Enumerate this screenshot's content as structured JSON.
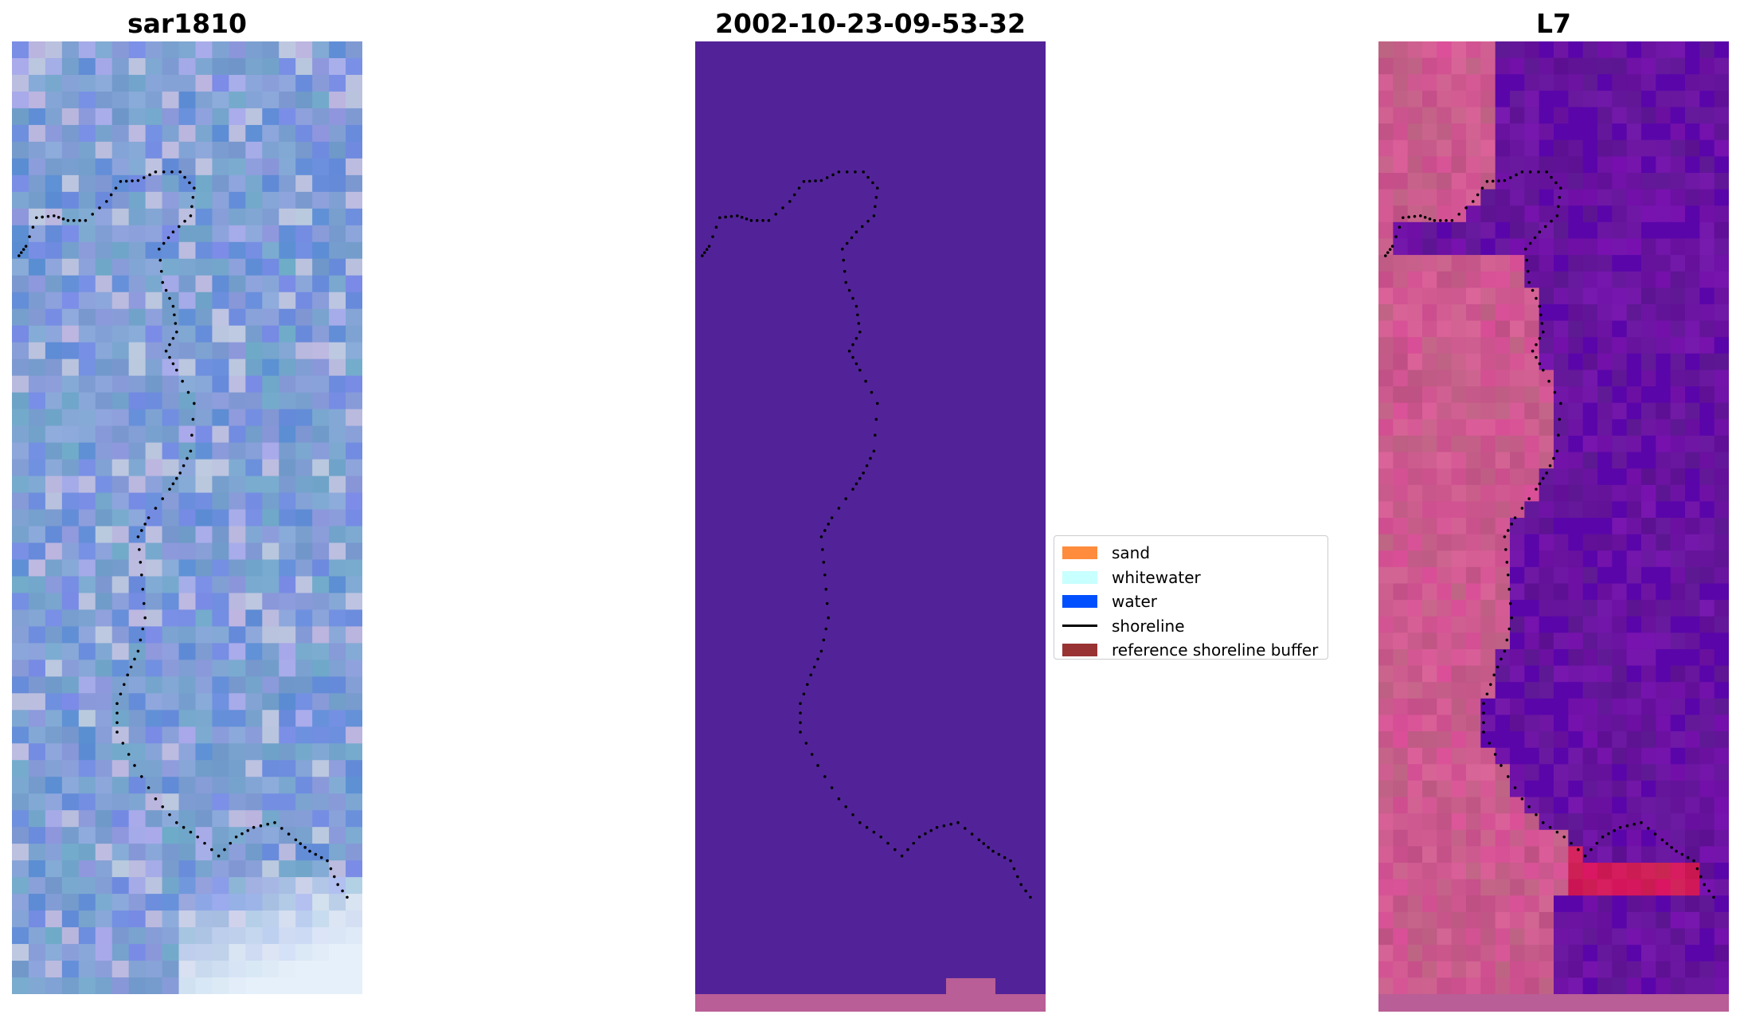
{
  "panels": [
    {
      "title": "sar1810",
      "image": "RGB satellite image (sar1810) with detected shoreline"
    },
    {
      "title": "2002-10-23-09-53-32",
      "image": "classified image"
    },
    {
      "title": "L7",
      "image": "MNDWI index image"
    }
  ],
  "legend": {
    "items": [
      {
        "label": "sand",
        "color": "#ff8c3c",
        "kind": "patch"
      },
      {
        "label": "whitewater",
        "color": "#c8ffff",
        "kind": "patch"
      },
      {
        "label": "water",
        "color": "#0050ff",
        "kind": "patch"
      },
      {
        "label": "shoreline",
        "color": "#000000",
        "kind": "line"
      },
      {
        "label": "reference shoreline buffer",
        "color": "#993333",
        "kind": "patch"
      }
    ]
  },
  "colors": {
    "rgb_base": "#6f9fc8",
    "classified_background": "#522398",
    "classified_strip": "#b95e96",
    "mndwi_water": "#6a16a0",
    "mndwi_land": "#cc5a8e",
    "shoreline": "#000000"
  }
}
